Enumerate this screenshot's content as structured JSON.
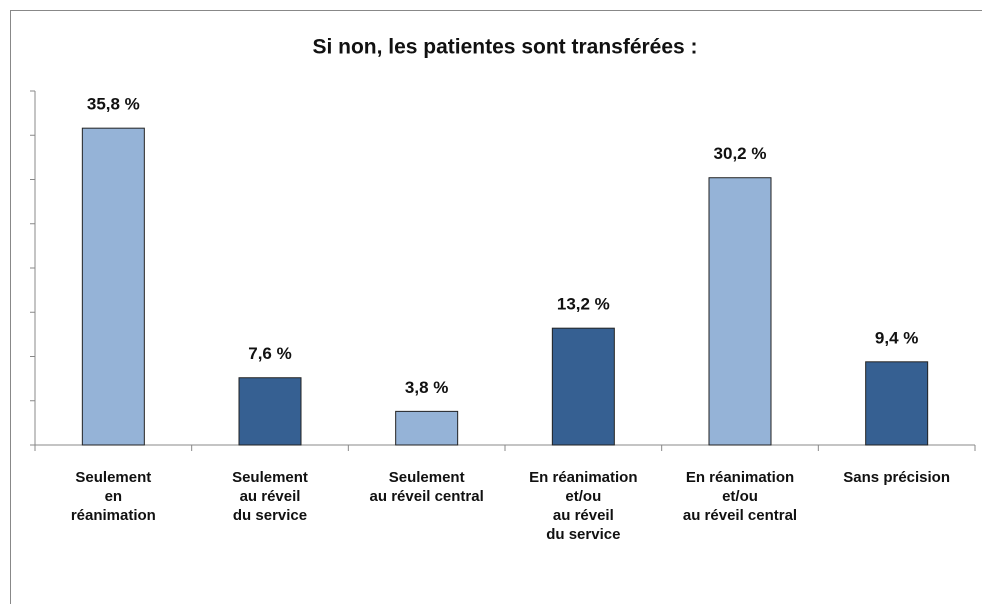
{
  "chart_data": {
    "type": "bar",
    "title": "Si non, les patientes sont transférées :",
    "categories": [
      "Seulement\nen\nréanimation",
      "Seulement\nau réveil\ndu service",
      "Seulement\nau réveil central",
      "En réanimation\net/ou\nau réveil\ndu service",
      "En réanimation\net/ou\nau réveil central",
      "Sans précision"
    ],
    "values": [
      35.8,
      7.6,
      3.8,
      13.2,
      30.2,
      9.4
    ],
    "value_labels": [
      "35,8 %",
      "7,6 %",
      "3,8 %",
      "13,2 %",
      "30,2 %",
      "9,4 %"
    ],
    "colors": [
      "#95b3d7",
      "#366092",
      "#95b3d7",
      "#366092",
      "#95b3d7",
      "#366092"
    ],
    "ylim": [
      0,
      40
    ],
    "yticks": [
      0,
      5,
      10,
      15,
      20,
      25,
      30,
      35,
      40
    ],
    "grid": false
  }
}
